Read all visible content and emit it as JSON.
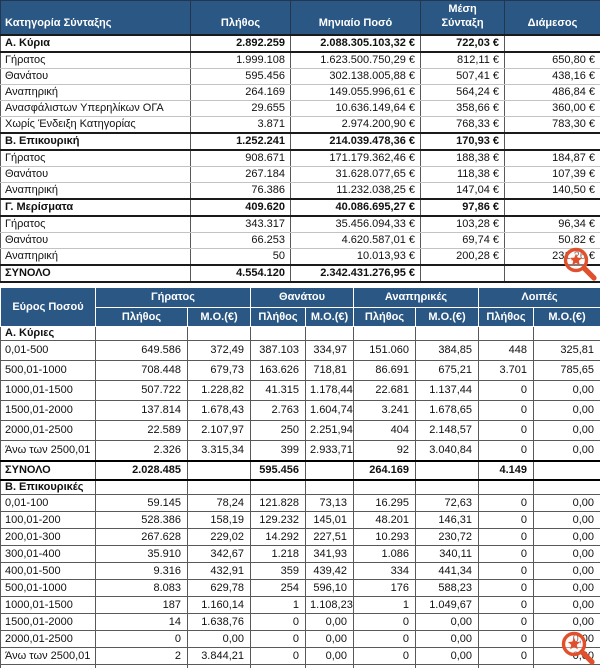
{
  "table1": {
    "headers": [
      "Κατηγορία Σύνταξης",
      "Πλήθος",
      "Μηνιαίο Ποσό",
      "Μέση\nΣύνταξη",
      "Διάμεσος"
    ],
    "rows": [
      {
        "label": "Α. Κύρια",
        "bold": true,
        "cells": [
          "2.892.259",
          "2.088.305.103,32 €",
          "722,03 €",
          ""
        ]
      },
      {
        "label": "Γήρατος",
        "bold": false,
        "cells": [
          "1.999.108",
          "1.623.500.750,29 €",
          "812,11 €",
          "650,80 €"
        ]
      },
      {
        "label": "Θανάτου",
        "bold": false,
        "cells": [
          "595.456",
          "302.138.005,88 €",
          "507,41 €",
          "438,16 €"
        ]
      },
      {
        "label": "Αναπηρική",
        "bold": false,
        "cells": [
          "264.169",
          "149.055.996,61 €",
          "564,24 €",
          "486,84 €"
        ]
      },
      {
        "label": "Ανασφάλιστων Υπερηλίκων ΟΓΑ",
        "bold": false,
        "cells": [
          "29.655",
          "10.636.149,64 €",
          "358,66 €",
          "360,00 €"
        ]
      },
      {
        "label": "Χωρίς Ένδειξη Κατηγορίας",
        "bold": false,
        "cells": [
          "3.871",
          "2.974.200,90 €",
          "768,33 €",
          "783,30 €"
        ]
      },
      {
        "label": "Β. Επικουρική",
        "bold": true,
        "cells": [
          "1.252.241",
          "214.039.478,36 €",
          "170,93 €",
          ""
        ]
      },
      {
        "label": "Γήρατος",
        "bold": false,
        "cells": [
          "908.671",
          "171.179.362,46 €",
          "188,38 €",
          "184,87 €"
        ]
      },
      {
        "label": "Θανάτου",
        "bold": false,
        "cells": [
          "267.184",
          "31.628.077,65 €",
          "118,38 €",
          "107,39 €"
        ]
      },
      {
        "label": "Αναπηρική",
        "bold": false,
        "cells": [
          "76.386",
          "11.232.038,25 €",
          "147,04 €",
          "140,50 €"
        ]
      },
      {
        "label": "Γ. Μερίσματα",
        "bold": true,
        "cells": [
          "409.620",
          "40.086.695,27 €",
          "97,86 €",
          ""
        ]
      },
      {
        "label": "Γήρατος",
        "bold": false,
        "cells": [
          "343.317",
          "35.456.094,33 €",
          "103,28 €",
          "96,34 €"
        ]
      },
      {
        "label": "Θανάτου",
        "bold": false,
        "cells": [
          "66.253",
          "4.620.587,01 €",
          "69,74 €",
          "50,82 €"
        ]
      },
      {
        "label": "Αναπηρική",
        "bold": false,
        "cells": [
          "50",
          "10.013,93 €",
          "200,28 €",
          "231,26 €"
        ]
      },
      {
        "label": "ΣΥΝΟΛΟ",
        "bold": true,
        "cells": [
          "4.554.120",
          "2.342.431.276,95 €",
          "",
          ""
        ]
      }
    ]
  },
  "table2": {
    "corner_label": "Εύρος Ποσού",
    "groups": [
      "Γήρατος",
      "Θανάτου",
      "Αναπηρικές",
      "Λοιπές"
    ],
    "sub_headers": [
      "Πλήθος",
      "Μ.Ο.(€)"
    ],
    "section_a": {
      "title": "Α. Κύριες",
      "rows": [
        [
          "0,01-500",
          "649.586",
          "372,49",
          "387.103",
          "334,97",
          "151.060",
          "384,85",
          "448",
          "325,81"
        ],
        [
          "500,01-1000",
          "708.448",
          "679,73",
          "163.626",
          "718,81",
          "86.691",
          "675,21",
          "3.701",
          "785,65"
        ],
        [
          "1000,01-1500",
          "507.722",
          "1.228,82",
          "41.315",
          "1.178,44",
          "22.681",
          "1.137,44",
          "0",
          "0,00"
        ],
        [
          "1500,01-2000",
          "137.814",
          "1.678,43",
          "2.763",
          "1.604,74",
          "3.241",
          "1.678,65",
          "0",
          "0,00"
        ],
        [
          "2000,01-2500",
          "22.589",
          "2.107,97",
          "250",
          "2.251,94",
          "404",
          "2.148,57",
          "0",
          "0,00"
        ],
        [
          "Άνω των 2500,01",
          "2.326",
          "3.315,34",
          "399",
          "2.933,71",
          "92",
          "3.040,84",
          "0",
          "0,00"
        ]
      ],
      "total": {
        "label": "ΣΥΝΟΛΟ",
        "cells": [
          "2.028.485",
          "",
          "595.456",
          "",
          "264.169",
          "",
          "4.149",
          ""
        ]
      }
    },
    "section_b": {
      "title": "Β. Επικουρικές",
      "rows": [
        [
          "0,01-100",
          "59.145",
          "78,24",
          "121.828",
          "73,13",
          "16.295",
          "72,63",
          "0",
          "0,00"
        ],
        [
          "100,01-200",
          "528.386",
          "158,19",
          "129.232",
          "145,01",
          "48.201",
          "146,31",
          "0",
          "0,00"
        ],
        [
          "200,01-300",
          "267.628",
          "229,02",
          "14.292",
          "227,51",
          "10.293",
          "230,72",
          "0",
          "0,00"
        ],
        [
          "300,01-400",
          "35.910",
          "342,67",
          "1.218",
          "341,93",
          "1.086",
          "340,11",
          "0",
          "0,00"
        ],
        [
          "400,01-500",
          "9.316",
          "432,91",
          "359",
          "439,42",
          "334",
          "441,34",
          "0",
          "0,00"
        ],
        [
          "500,01-1000",
          "8.083",
          "629,78",
          "254",
          "596,10",
          "176",
          "588,23",
          "0",
          "0,00"
        ],
        [
          "1000,01-1500",
          "187",
          "1.160,14",
          "1",
          "1.108,23",
          "1",
          "1.049,67",
          "0",
          "0,00"
        ],
        [
          "1500,01-2000",
          "14",
          "1.638,76",
          "0",
          "0,00",
          "0",
          "0,00",
          "0",
          "0,00"
        ],
        [
          "2000,01-2500",
          "0",
          "0,00",
          "0",
          "0,00",
          "0",
          "0,00",
          "0",
          "0,00"
        ],
        [
          "Άνω των 2500,01",
          "2",
          "3.844,21",
          "0",
          "0,00",
          "0",
          "0,00",
          "0",
          "0,00"
        ]
      ]
    }
  },
  "colors": {
    "header_bg": "#2A5783",
    "header_text": "#FFFFFF",
    "magnifier": "#E0502D"
  },
  "icons": {
    "magnifier_1": "zoom-magnifier-icon",
    "magnifier_2": "zoom-magnifier-icon"
  }
}
